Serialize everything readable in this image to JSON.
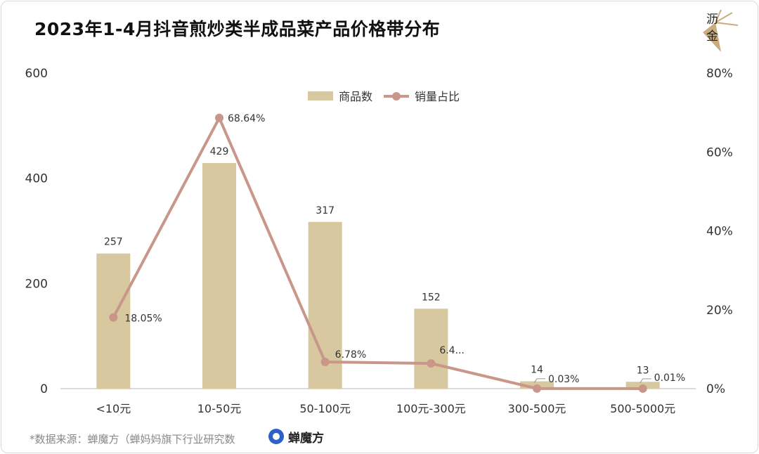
{
  "title": "2023年1-4月抖音煎炒类半成品菜产品价格带分布",
  "logo": {
    "line1": "沥",
    "line2": "金"
  },
  "source": "*数据来源：蝉魔方（蝉妈妈旗下行业研究数",
  "brand": "蝉魔方",
  "colors": {
    "bar": "#d8c8a0",
    "line": "#c9968a",
    "axis": "#cfcfcf",
    "text": "#333333"
  },
  "chart_data": {
    "type": "bar",
    "categories": [
      "<10元",
      "10-50元",
      "50-100元",
      "100元-300元",
      "300-500元",
      "500-5000元"
    ],
    "series": [
      {
        "name": "商品数",
        "type": "bar",
        "axis": "left",
        "values": [
          257,
          429,
          317,
          152,
          14,
          13
        ],
        "labels": [
          "257",
          "429",
          "317",
          "152",
          "14",
          "13"
        ]
      },
      {
        "name": "销量占比",
        "type": "line",
        "axis": "right",
        "values": [
          18.05,
          68.64,
          6.78,
          6.4,
          0.03,
          0.01
        ],
        "labels": [
          "18.05%",
          "68.64%",
          "6.78%",
          "6.4...",
          "0.03%",
          "0.01%"
        ]
      }
    ],
    "y_left": {
      "ylim": [
        0,
        600
      ],
      "ticks": [
        "0",
        "200",
        "400",
        "600"
      ]
    },
    "y_right": {
      "ylim": [
        0,
        80
      ],
      "ticks": [
        "0%",
        "20%",
        "40%",
        "60%",
        "80%"
      ]
    },
    "legend": "top-center",
    "grid": false
  }
}
